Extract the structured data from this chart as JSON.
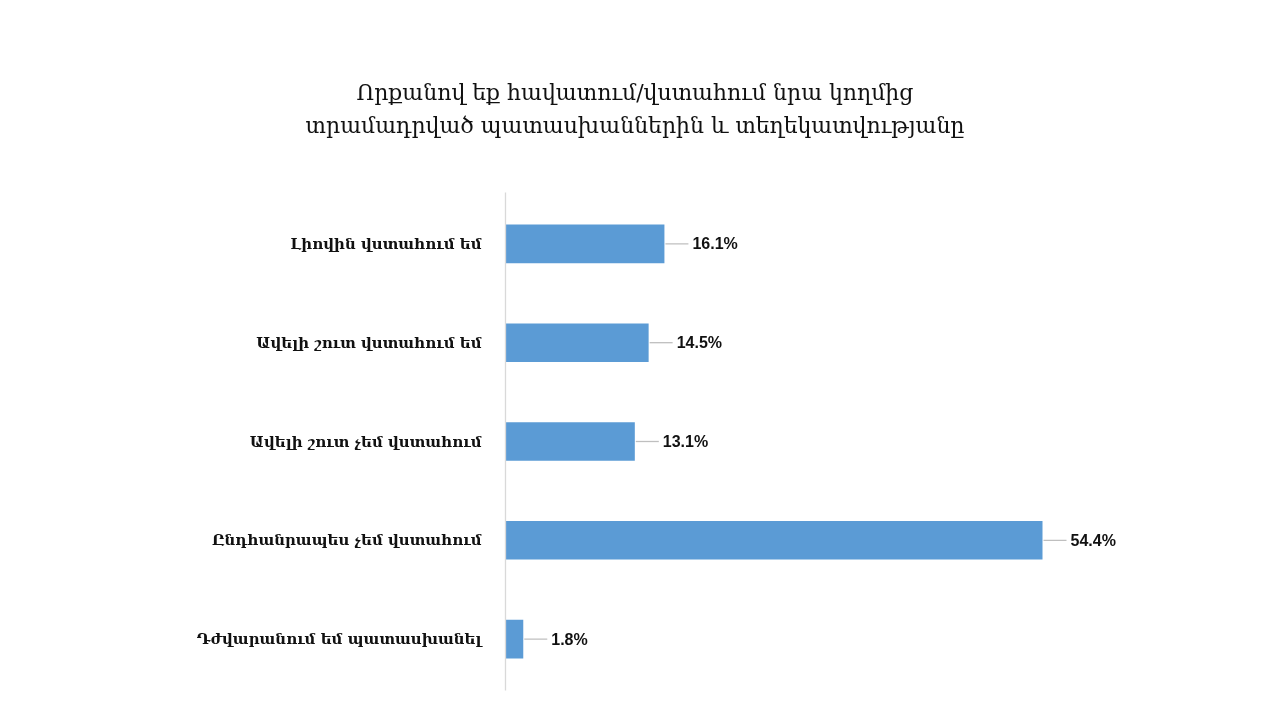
{
  "chart_data": {
    "type": "bar",
    "orientation": "horizontal",
    "title": "Որքանով եք հավատում/վստահում նրա կողմից տրամադրված պատասխաններին և տեղեկատվությանը",
    "categories": [
      "Լիովին վստահում եմ",
      "Ավելի շուտ վստահում եմ",
      "Ավելի շուտ չեմ վստահում",
      "Ընդհանրապես չեմ վստահում",
      "Դժվարանում եմ պատասխանել"
    ],
    "values": [
      16.1,
      14.5,
      13.1,
      54.4,
      1.8
    ],
    "value_labels": [
      "16.1%",
      "14.5%",
      "13.1%",
      "54.4%",
      "1.8%"
    ],
    "color": "#5b9bd5",
    "tick_labels": "y"
  }
}
